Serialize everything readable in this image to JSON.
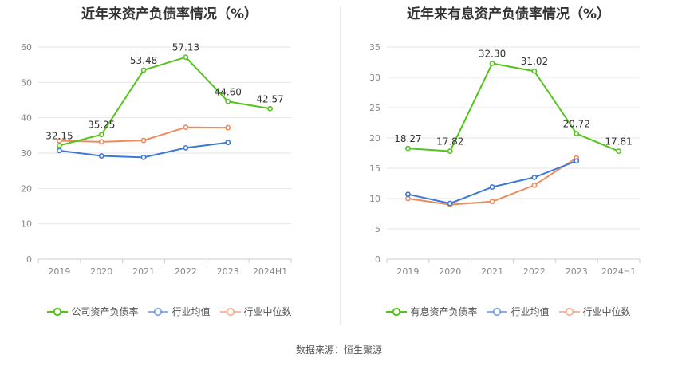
{
  "chart_data": [
    {
      "type": "line",
      "title": "近年来资产负债率情况（%）",
      "categories": [
        "2019",
        "2020",
        "2021",
        "2022",
        "2023",
        "2024H1"
      ],
      "ylim": [
        0,
        60
      ],
      "yticks": [
        0,
        10,
        20,
        30,
        40,
        50,
        60
      ],
      "grid": true,
      "legend_position": "bottom",
      "series": [
        {
          "name": "公司资产负债率",
          "color": "#52c41a",
          "values": [
            32.15,
            35.25,
            53.48,
            57.13,
            44.6,
            42.57
          ],
          "labels": [
            "32.15",
            "35.25",
            "53.48",
            "57.13",
            "44.60",
            "42.57"
          ]
        },
        {
          "name": "行业均值",
          "color": "#3b78d8",
          "values": [
            30.7,
            29.2,
            28.8,
            31.5,
            33.0,
            null
          ]
        },
        {
          "name": "行业中位数",
          "color": "#f08a5d",
          "values": [
            33.5,
            33.2,
            33.6,
            37.3,
            37.2,
            null
          ]
        }
      ]
    },
    {
      "type": "line",
      "title": "近年来有息资产负债率情况（%）",
      "categories": [
        "2019",
        "2020",
        "2021",
        "2022",
        "2023",
        "2024H1"
      ],
      "ylim": [
        0,
        35
      ],
      "yticks": [
        0,
        5,
        10,
        15,
        20,
        25,
        30,
        35
      ],
      "grid": true,
      "legend_position": "bottom",
      "series": [
        {
          "name": "有息资产负债率",
          "color": "#52c41a",
          "values": [
            18.27,
            17.82,
            32.3,
            31.02,
            20.72,
            17.81
          ],
          "labels": [
            "18.27",
            "17.82",
            "32.30",
            "31.02",
            "20.72",
            "17.81"
          ]
        },
        {
          "name": "行业均值",
          "color": "#3b78d8",
          "values": [
            10.7,
            9.2,
            11.9,
            13.5,
            16.2,
            null
          ]
        },
        {
          "name": "行业中位数",
          "color": "#f08a5d",
          "values": [
            10.0,
            9.0,
            9.5,
            12.2,
            16.7,
            null
          ]
        }
      ]
    }
  ],
  "source_text": "数据来源：恒生聚源"
}
